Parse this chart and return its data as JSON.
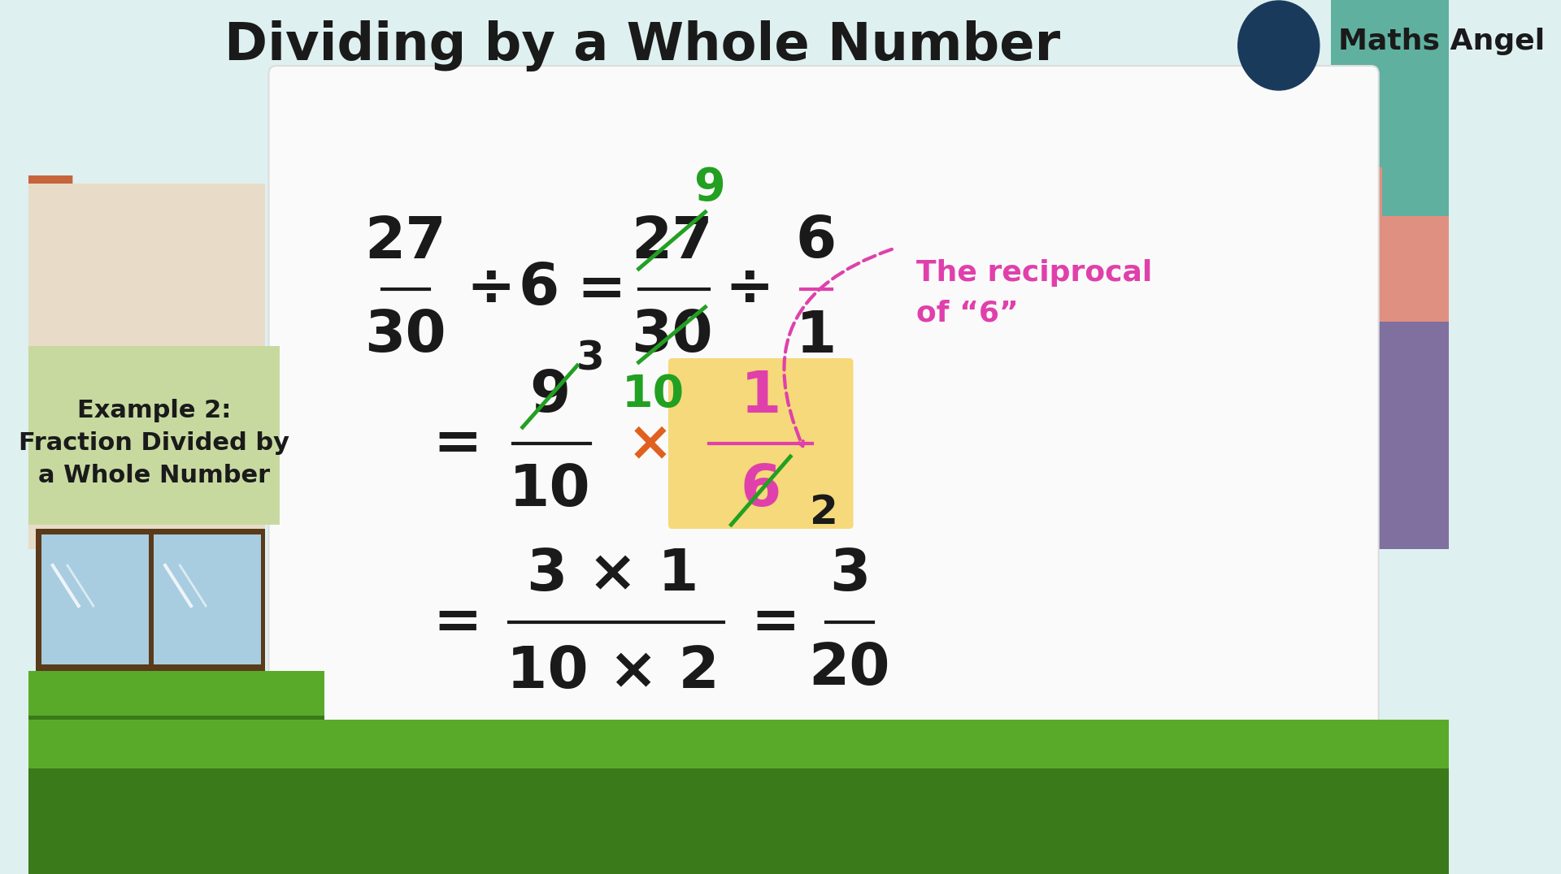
{
  "title": "Dividing by a Whole Number",
  "title_fontsize": 46,
  "title_fontweight": "bold",
  "title_color": "#1a1a1a",
  "bg_color": "#dff0f0",
  "panel_color": "#fafafa",
  "example_label_line1": "Example 2:",
  "example_label_line2": "Fraction Divided by",
  "example_label_line3": "a Whole Number",
  "example_fontsize": 22,
  "example_color": "#1a1a1a",
  "example_bg": "#c8d9a0",
  "green_color": "#22a022",
  "pink_color": "#e040ab",
  "black_color": "#1a1a1a",
  "orange_color": "#e06020",
  "highlight_color": "#f5d97a",
  "reciprocal_text_line1": "The reciprocal",
  "reciprocal_text_line2": "of “6”",
  "reciprocal_color": "#e040ab",
  "house_roof_color": "#c8643c",
  "house_wall_color": "#e8dcc8",
  "house_dark_color": "#5a3a1a",
  "window_color": "#a8cce0",
  "grass_dark": "#3a7a1a",
  "grass_light": "#5aaa2a",
  "building_teal": "#60b0a0",
  "building_salmon": "#e09080",
  "building_purple": "#8070a0"
}
